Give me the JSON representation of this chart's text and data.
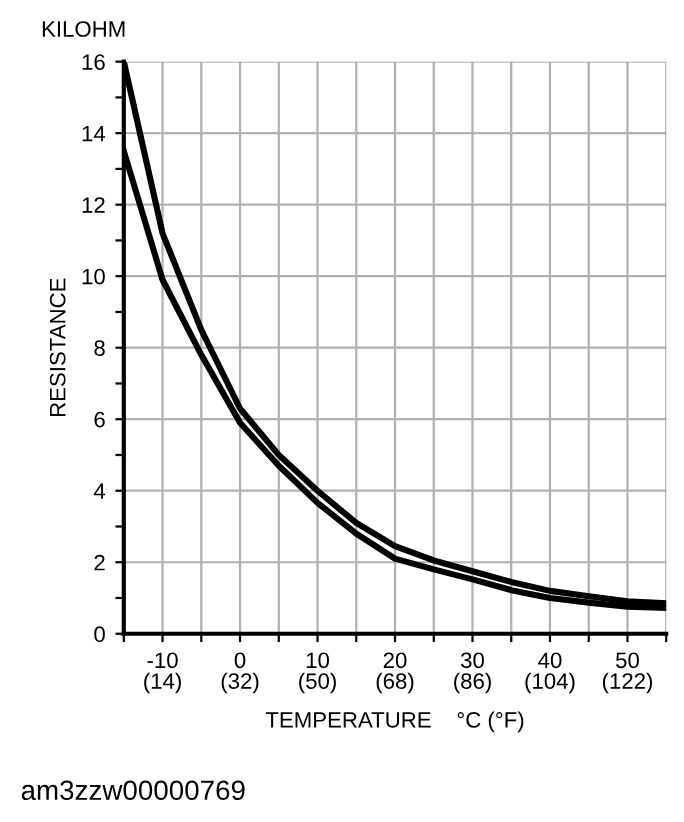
{
  "chart_data": {
    "type": "line",
    "ylabel": "RESISTANCE",
    "xlabel": "TEMPERATURE    °C (°F)",
    "annotations": [
      "KILOHM",
      "am3zzw00000769"
    ],
    "x": [
      -15,
      -10,
      -5,
      0,
      5,
      10,
      15,
      20,
      25,
      30,
      35,
      40,
      45,
      50,
      55
    ],
    "series": [
      {
        "color": "#000000",
        "values": [
          16,
          11.2,
          8.5,
          6.3,
          5.0,
          4.0,
          3.1,
          2.45,
          2.05,
          1.75,
          1.45,
          1.2,
          1.05,
          0.91,
          0.85
        ]
      },
      {
        "color": "#000000",
        "values": [
          13.5,
          9.9,
          7.8,
          5.9,
          4.7,
          3.66,
          2.8,
          2.1,
          1.8,
          1.52,
          1.22,
          1.0,
          0.87,
          0.76,
          0.72
        ]
      }
    ],
    "xlim": [
      -15,
      55
    ],
    "xticks": [
      {
        "value": -15,
        "label": null
      },
      -10,
      {
        "value": -5,
        "label": null
      },
      0,
      {
        "value": 5,
        "label": null
      },
      10,
      {
        "value": 15,
        "label": null
      },
      20,
      {
        "value": 25,
        "label": null
      },
      30,
      {
        "value": 35,
        "label": null
      },
      40,
      {
        "value": 45,
        "label": null
      },
      50,
      {
        "value": 55,
        "label": null
      }
    ],
    "x2lim": [
      5,
      131
    ],
    "x2ticks": [
      {
        "value": 14,
        "label": "(14)"
      },
      {
        "value": 32,
        "label": "(32)"
      },
      {
        "value": 50,
        "label": "(50)"
      },
      {
        "value": 68,
        "label": "(68)"
      },
      {
        "value": 86,
        "label": "(86)"
      },
      {
        "value": 104,
        "label": "(104)"
      },
      {
        "value": 122,
        "label": "(122)"
      }
    ],
    "ylim": [
      0,
      16
    ],
    "yticks": [
      0,
      {
        "value": 1,
        "label": null
      },
      2,
      {
        "value": 3,
        "label": null
      },
      4,
      {
        "value": 5,
        "label": null
      },
      6,
      {
        "value": 7,
        "label": null
      },
      8,
      {
        "value": 9,
        "label": null
      },
      10,
      {
        "value": 11,
        "label": null
      },
      12,
      {
        "value": 13,
        "label": null
      },
      14,
      {
        "value": 15,
        "label": null
      },
      16
    ],
    "grid": true,
    "marker": "none",
    "line_style": "solid",
    "legend": false
  }
}
